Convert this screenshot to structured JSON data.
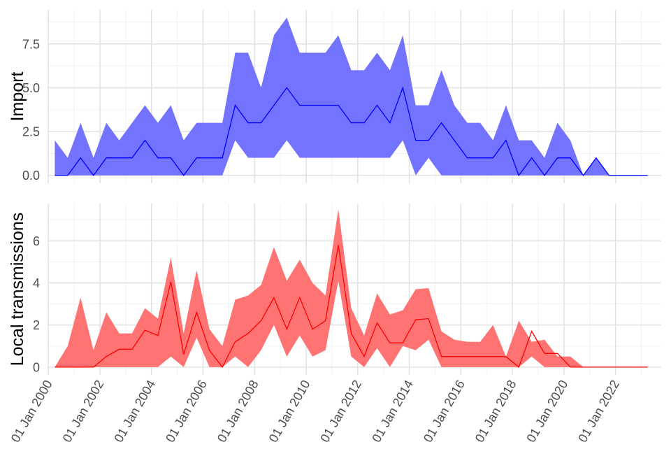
{
  "chart_data": [
    {
      "type": "area",
      "panel": "top",
      "ylabel": "Import",
      "ylim": [
        -0.45,
        9.45
      ],
      "y_ticks": [
        0,
        2.5,
        5,
        7.5
      ],
      "y_tick_labels": [
        "0.0",
        "2.5",
        "5.0",
        "7.5"
      ],
      "color": "#0000ff",
      "ribbon_color": "#7373ff",
      "x": [
        "2000-04-01",
        "2000-10-01",
        "2001-04-01",
        "2001-10-01",
        "2002-04-01",
        "2002-10-01",
        "2003-04-01",
        "2003-10-01",
        "2004-04-01",
        "2004-10-01",
        "2005-04-01",
        "2005-10-01",
        "2006-04-01",
        "2006-10-01",
        "2007-04-01",
        "2007-10-01",
        "2008-04-01",
        "2008-10-01",
        "2009-04-01",
        "2009-10-01",
        "2010-04-01",
        "2010-10-01",
        "2011-04-01",
        "2011-10-01",
        "2012-04-01",
        "2012-10-01",
        "2013-04-01",
        "2013-10-01",
        "2014-04-01",
        "2014-10-01",
        "2015-04-01",
        "2015-10-01",
        "2016-04-01",
        "2016-10-01",
        "2017-04-01",
        "2017-10-01",
        "2018-04-01",
        "2018-10-01",
        "2019-04-01",
        "2019-10-01",
        "2020-04-01",
        "2020-10-01",
        "2021-04-01",
        "2021-10-01",
        "2022-04-01",
        "2022-10-01",
        "2023-04-01"
      ],
      "values": [
        0,
        0,
        1,
        0,
        1,
        1,
        1,
        2,
        1,
        1,
        0,
        1,
        1,
        1,
        4,
        3,
        3,
        4,
        5,
        4,
        4,
        4,
        4,
        3,
        3,
        4,
        3,
        5,
        2,
        2,
        3,
        2,
        1,
        1,
        1,
        2,
        0,
        1,
        0,
        1,
        1,
        0,
        1,
        0,
        0,
        0,
        0
      ],
      "lower": [
        0,
        0,
        0,
        0,
        0,
        0,
        0,
        0,
        0,
        0,
        0,
        0,
        0,
        0,
        2,
        1,
        1,
        1,
        2,
        1,
        1,
        1,
        1,
        1,
        1,
        1,
        1,
        2,
        0,
        1,
        0,
        0,
        0,
        0,
        0,
        0,
        0,
        0,
        0,
        0,
        0,
        0,
        0,
        0,
        0,
        0,
        0
      ],
      "upper": [
        2,
        1,
        3,
        1,
        3,
        2,
        3,
        4,
        3,
        4,
        2,
        3,
        3,
        3,
        7,
        7,
        5,
        8,
        9,
        7,
        7,
        7,
        8,
        6,
        6,
        7,
        6,
        8,
        4,
        4,
        6,
        4,
        3,
        3,
        2,
        4,
        2,
        2,
        1,
        3,
        2,
        0,
        1,
        0,
        0,
        0,
        0
      ]
    },
    {
      "type": "area",
      "panel": "bottom",
      "ylabel": "Local transmissions",
      "ylim": [
        -0.37,
        7.77
      ],
      "y_ticks": [
        0,
        2,
        4,
        6
      ],
      "y_tick_labels": [
        "0",
        "2",
        "4",
        "6"
      ],
      "color": "#ff0000",
      "ribbon_color": "#ff7373",
      "x": [
        "2000-04-01",
        "2000-10-01",
        "2001-04-01",
        "2001-10-01",
        "2002-04-01",
        "2002-10-01",
        "2003-04-01",
        "2003-10-01",
        "2004-04-01",
        "2004-10-01",
        "2005-04-01",
        "2005-10-01",
        "2006-04-01",
        "2006-10-01",
        "2007-04-01",
        "2007-10-01",
        "2008-04-01",
        "2008-10-01",
        "2009-04-01",
        "2009-10-01",
        "2010-04-01",
        "2010-10-01",
        "2011-04-01",
        "2011-10-01",
        "2012-04-01",
        "2012-10-01",
        "2013-04-01",
        "2013-10-01",
        "2014-04-01",
        "2014-10-01",
        "2015-04-01",
        "2015-10-01",
        "2016-04-01",
        "2016-10-01",
        "2017-04-01",
        "2017-10-01",
        "2018-04-01",
        "2018-10-01",
        "2019-04-01",
        "2019-10-01",
        "2020-04-01",
        "2020-10-01",
        "2021-04-01",
        "2021-10-01",
        "2022-04-01",
        "2022-10-01",
        "2023-04-01"
      ],
      "values": [
        0,
        0,
        0,
        0,
        0.5,
        0.85,
        0.85,
        1.75,
        1.5,
        4.05,
        0.6,
        2.6,
        0.8,
        0,
        1.2,
        1.6,
        2.2,
        3.3,
        1.8,
        3.3,
        1.8,
        2.2,
        5.8,
        1.6,
        0.5,
        2.1,
        1.15,
        1.15,
        2.25,
        2.3,
        0.5,
        0.5,
        0.5,
        0.5,
        0.5,
        0.5,
        0,
        1.7,
        0.65,
        0.65,
        0,
        0,
        0,
        0,
        0,
        0,
        0
      ],
      "lower": [
        0,
        0,
        0,
        0,
        0,
        0,
        0,
        0,
        0,
        0.5,
        0,
        1.4,
        0,
        0,
        0.5,
        0,
        0.8,
        2,
        0.5,
        1.5,
        0.5,
        0.8,
        4.1,
        0.5,
        0,
        0.9,
        0,
        1,
        0.8,
        1.3,
        0,
        0,
        0,
        0,
        0,
        0,
        0,
        0.5,
        0,
        0,
        0,
        0,
        0,
        0,
        0,
        0,
        0
      ],
      "upper": [
        0,
        1,
        3.3,
        0.8,
        2.6,
        1.6,
        1.6,
        2.8,
        2.3,
        5.2,
        1.6,
        4.6,
        1.8,
        1,
        3.2,
        3.4,
        3.9,
        5.7,
        4.1,
        5.1,
        4,
        3.4,
        7.5,
        2.8,
        1.5,
        3.5,
        2.5,
        2.7,
        3.7,
        3.75,
        1.7,
        1.3,
        1.2,
        1.2,
        2,
        0.5,
        2.2,
        1.2,
        1.3,
        0.5,
        0.5,
        0,
        0,
        0,
        0,
        0,
        0
      ]
    }
  ],
  "x_axis": {
    "tick_labels": [
      "01 Jan 2000",
      "01 Jan 2002",
      "01 Jan 2004",
      "01 Jan 2006",
      "01 Jan 2008",
      "01 Jan 2010",
      "01 Jan 2012",
      "01 Jan 2014",
      "01 Jan 2016",
      "01 Jan 2018",
      "01 Jan 2020",
      "01 Jan 2022"
    ],
    "tick_dates": [
      "2000-01-01",
      "2002-01-01",
      "2004-01-01",
      "2006-01-01",
      "2008-01-01",
      "2010-01-01",
      "2012-01-01",
      "2014-01-01",
      "2016-01-01",
      "2018-01-01",
      "2020-01-01",
      "2022-01-01"
    ],
    "xlim": [
      "1999-12-20",
      "2023-10-10"
    ]
  }
}
